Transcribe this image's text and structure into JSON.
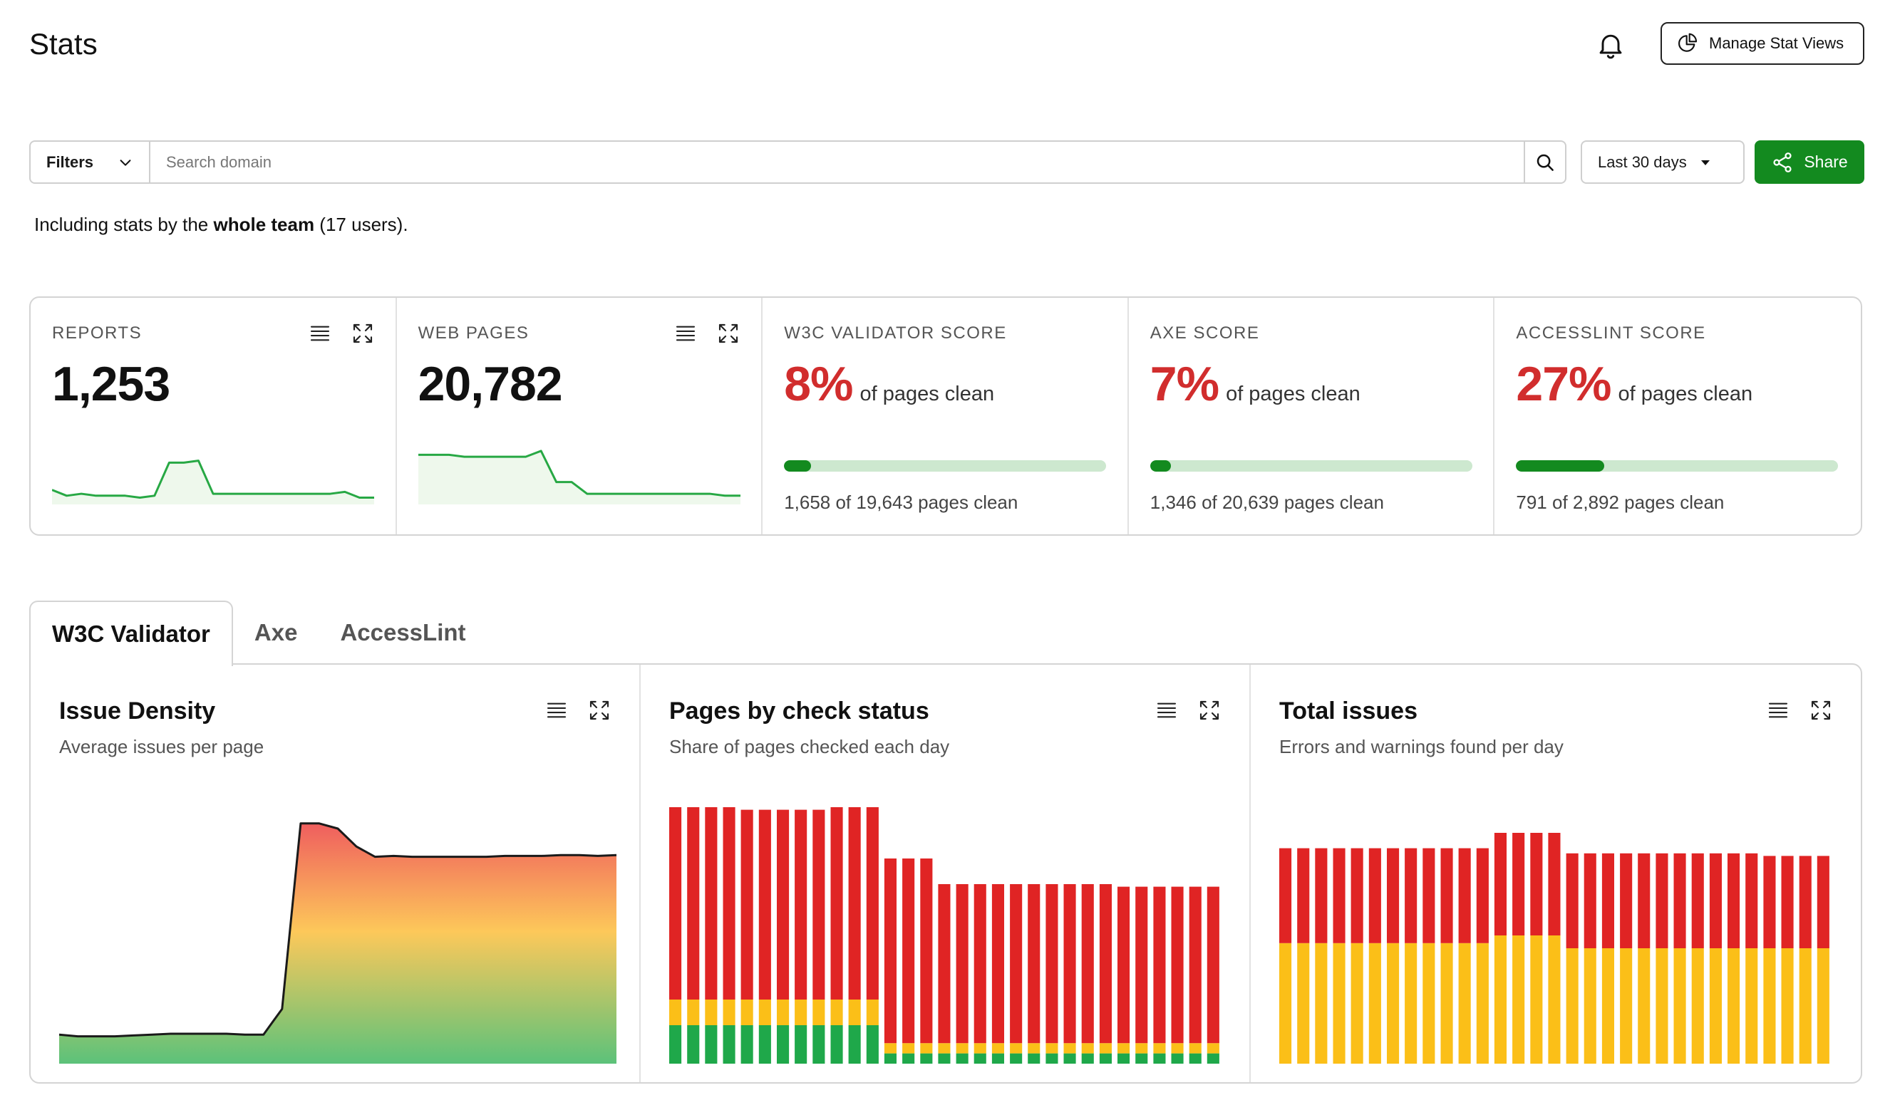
{
  "header": {
    "title": "Stats",
    "manage_label": "Manage Stat Views"
  },
  "filterbar": {
    "filters_label": "Filters",
    "search_placeholder": "Search domain",
    "range_label": "Last 30 days",
    "share_label": "Share"
  },
  "including": {
    "prefix": "Including stats by the ",
    "team": "whole team",
    "suffix": " (17 users)."
  },
  "stats": {
    "reports": {
      "label": "REPORTS",
      "value": "1,253",
      "sparkline": [
        6,
        3,
        4,
        3,
        3,
        3,
        2,
        3,
        20,
        20,
        21,
        4,
        4,
        4,
        4,
        4,
        4,
        4,
        4,
        4,
        5,
        2,
        2
      ]
    },
    "web_pages": {
      "label": "WEB PAGES",
      "value": "20,782",
      "sparkline": [
        24,
        24,
        24,
        23,
        23,
        23,
        23,
        23,
        26,
        10,
        10,
        4,
        4,
        4,
        4,
        4,
        4,
        4,
        4,
        4,
        3,
        3
      ]
    },
    "w3c": {
      "label": "W3C VALIDATOR SCORE",
      "pct": "8%",
      "suffix": "of pages clean",
      "fraction": 0.084,
      "caption": "1,658 of 19,643 pages clean"
    },
    "axe": {
      "label": "AXE SCORE",
      "pct": "7%",
      "suffix": "of pages clean",
      "fraction": 0.065,
      "caption": "1,346 of 20,639 pages clean"
    },
    "accesslint": {
      "label": "ACCESSLINT SCORE",
      "pct": "27%",
      "suffix": "of pages clean",
      "fraction": 0.273,
      "caption": "791 of 2,892 pages clean"
    }
  },
  "tabs": [
    "W3C Validator",
    "Axe",
    "AccessLint"
  ],
  "charts": {
    "density": {
      "title": "Issue Density",
      "subtitle": "Average issues per page"
    },
    "status": {
      "title": "Pages by check status",
      "subtitle": "Share of pages checked each day"
    },
    "total": {
      "title": "Total issues",
      "subtitle": "Errors and warnings found per day"
    }
  },
  "colors": {
    "green": "#138a1f",
    "red": "#d12d2d",
    "bar_red": "#e02424",
    "bar_yellow": "#fbbf18",
    "bar_green": "#1fa84a"
  },
  "chart_data": [
    {
      "type": "area",
      "title": "Issue Density",
      "subtitle": "Average issues per page",
      "values": [
        3.4,
        3.2,
        3.2,
        3.2,
        3.3,
        3.4,
        3.5,
        3.5,
        3.5,
        3.5,
        3.4,
        3.4,
        6.4,
        28.1,
        28.1,
        27.5,
        25.4,
        24.2,
        24.3,
        24.2,
        24.2,
        24.2,
        24.2,
        24.2,
        24.3,
        24.3,
        24.3,
        24.4,
        24.4,
        24.3,
        24.4
      ]
    },
    {
      "type": "bar",
      "title": "Pages by check status",
      "subtitle": "Share of pages checked each day",
      "stacked": true,
      "series": [
        {
          "values": [
            15,
            15,
            15,
            15,
            15,
            15,
            15,
            15,
            15,
            15,
            15,
            15,
            4,
            4,
            4,
            4,
            4,
            4,
            4,
            4,
            4,
            4,
            4,
            4,
            4,
            4,
            4,
            4,
            4,
            4,
            4
          ]
        },
        {
          "values": [
            10,
            10,
            10,
            10,
            10,
            10,
            10,
            10,
            10,
            10,
            10,
            10,
            4,
            4,
            4,
            4,
            4,
            4,
            4,
            4,
            4,
            4,
            4,
            4,
            4,
            4,
            4,
            4,
            4,
            4,
            4
          ]
        },
        {
          "values": [
            75,
            75,
            75,
            75,
            74,
            74,
            74,
            74,
            74,
            75,
            75,
            77,
            72,
            72,
            72,
            62,
            62,
            62,
            62,
            62,
            62,
            62,
            62,
            62,
            62,
            61,
            61,
            61,
            61,
            61,
            61
          ]
        }
      ]
    },
    {
      "type": "bar",
      "title": "Total issues",
      "subtitle": "Errors and warnings found per day",
      "stacked": true,
      "series": [
        {
          "values": [
            47,
            47,
            47,
            47,
            47,
            47,
            47,
            47,
            47,
            47,
            47,
            47,
            50,
            50,
            50,
            50,
            45,
            45,
            45,
            45,
            45,
            45,
            45,
            45,
            45,
            45,
            45,
            45,
            45,
            45,
            45
          ]
        },
        {
          "values": [
            37,
            37,
            37,
            37,
            37,
            37,
            37,
            37,
            37,
            37,
            37,
            37,
            40,
            40,
            40,
            40,
            37,
            37,
            37,
            37,
            37,
            37,
            37,
            37,
            37,
            37,
            37,
            36,
            36,
            36,
            36
          ]
        }
      ]
    }
  ]
}
